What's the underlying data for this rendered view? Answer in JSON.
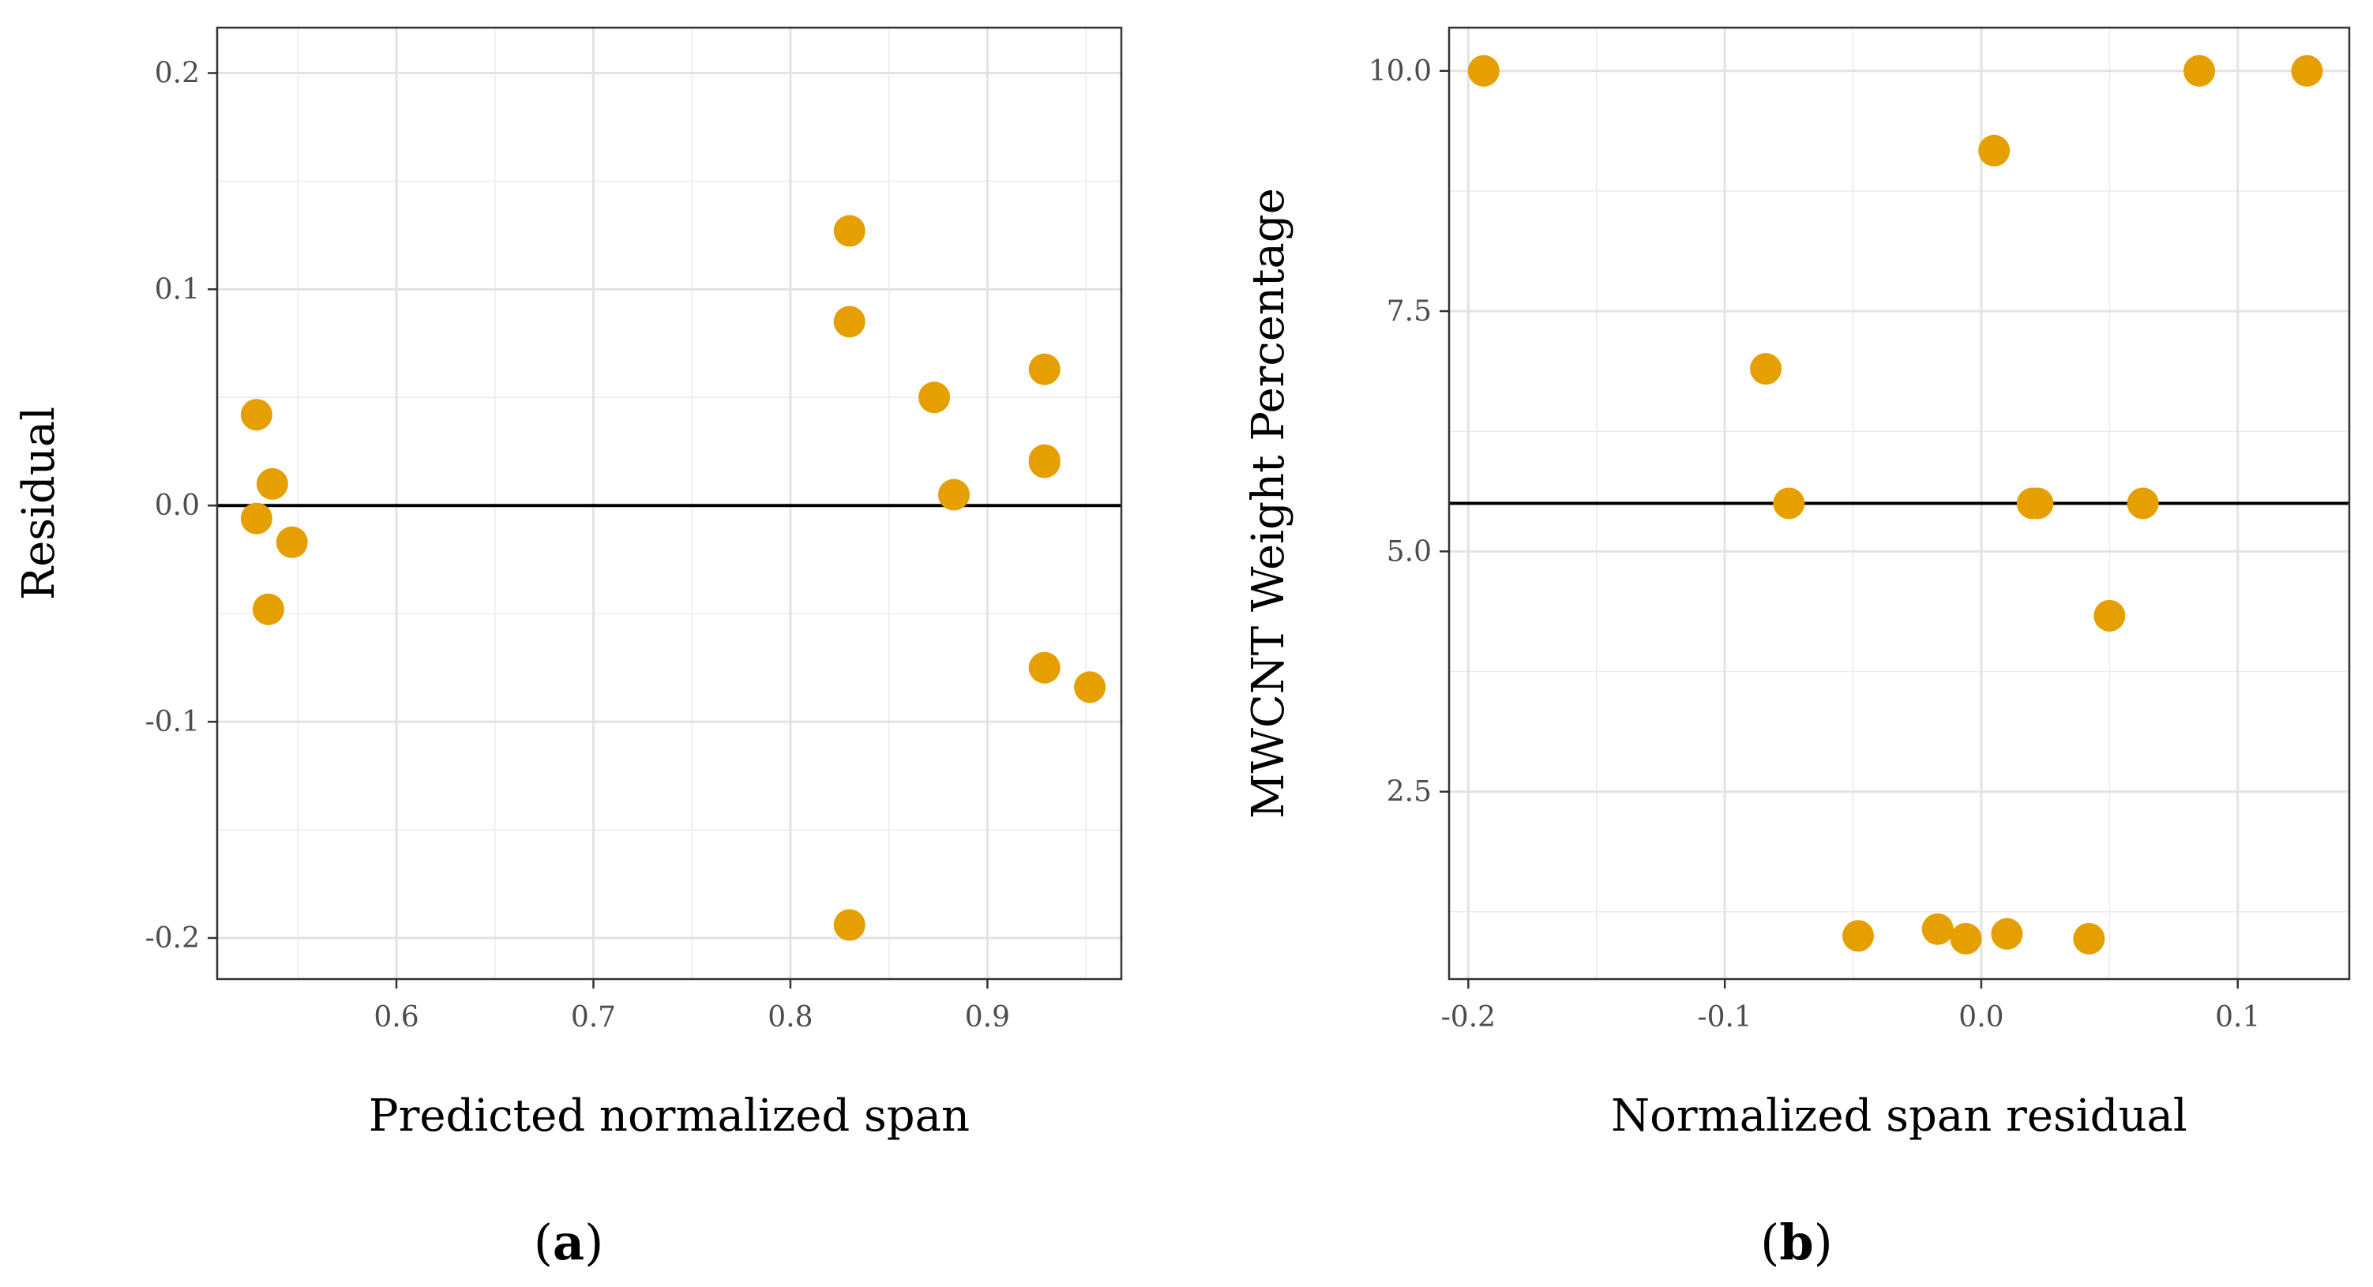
{
  "chart_data": [
    {
      "type": "scatter",
      "caption": "a",
      "xlabel": "Predicted normalized span",
      "ylabel": "Residual",
      "xlim": [
        0.509,
        0.968
      ],
      "ylim": [
        -0.219,
        0.221
      ],
      "xticks": [
        0.6,
        0.7,
        0.8,
        0.9
      ],
      "xtick_labels": [
        "0.6",
        "0.7",
        "0.8",
        "0.9"
      ],
      "yticks": [
        -0.2,
        -0.1,
        0.0,
        0.1,
        0.2
      ],
      "ytick_labels": [
        "-0.2",
        "-0.1",
        "0.0",
        "0.1",
        "0.2"
      ],
      "reference_line": {
        "orientation": "horizontal",
        "value": 0.0
      },
      "grid": true,
      "point_color": "#E69F00",
      "points": [
        {
          "x": 0.529,
          "y": 0.042
        },
        {
          "x": 0.537,
          "y": 0.01
        },
        {
          "x": 0.529,
          "y": -0.006
        },
        {
          "x": 0.547,
          "y": -0.017
        },
        {
          "x": 0.535,
          "y": -0.048
        },
        {
          "x": 0.83,
          "y": 0.127
        },
        {
          "x": 0.83,
          "y": 0.085
        },
        {
          "x": 0.83,
          "y": -0.194
        },
        {
          "x": 0.873,
          "y": 0.05
        },
        {
          "x": 0.883,
          "y": 0.005
        },
        {
          "x": 0.929,
          "y": 0.063
        },
        {
          "x": 0.929,
          "y": 0.021
        },
        {
          "x": 0.929,
          "y": 0.02
        },
        {
          "x": 0.929,
          "y": -0.075
        },
        {
          "x": 0.952,
          "y": -0.084
        }
      ]
    },
    {
      "type": "scatter",
      "caption": "b",
      "xlabel": "Normalized span residual",
      "ylabel": "MWCNT Weight Percentage",
      "xlim": [
        -0.2075,
        0.1435
      ],
      "ylim": [
        0.55,
        10.45
      ],
      "xticks": [
        -0.2,
        -0.1,
        0.0,
        0.1
      ],
      "xtick_labels": [
        "-0.2",
        "-0.1",
        "0.0",
        "0.1"
      ],
      "yticks": [
        2.5,
        5.0,
        7.5,
        10.0
      ],
      "ytick_labels": [
        "2.5",
        "5.0",
        "7.5",
        "10.0"
      ],
      "reference_line": {
        "orientation": "horizontal",
        "value": 5.5
      },
      "grid": true,
      "point_color": "#E69F00",
      "points": [
        {
          "x": -0.194,
          "y": 10.0
        },
        {
          "x": 0.085,
          "y": 10.0
        },
        {
          "x": 0.127,
          "y": 10.0
        },
        {
          "x": 0.005,
          "y": 9.17
        },
        {
          "x": -0.084,
          "y": 6.9
        },
        {
          "x": -0.075,
          "y": 5.5
        },
        {
          "x": 0.02,
          "y": 5.5
        },
        {
          "x": 0.022,
          "y": 5.5
        },
        {
          "x": 0.063,
          "y": 5.5
        },
        {
          "x": 0.05,
          "y": 4.33
        },
        {
          "x": -0.048,
          "y": 1.0
        },
        {
          "x": -0.017,
          "y": 1.07
        },
        {
          "x": -0.006,
          "y": 0.97
        },
        {
          "x": 0.01,
          "y": 1.02
        },
        {
          "x": 0.042,
          "y": 0.97
        }
      ]
    }
  ]
}
